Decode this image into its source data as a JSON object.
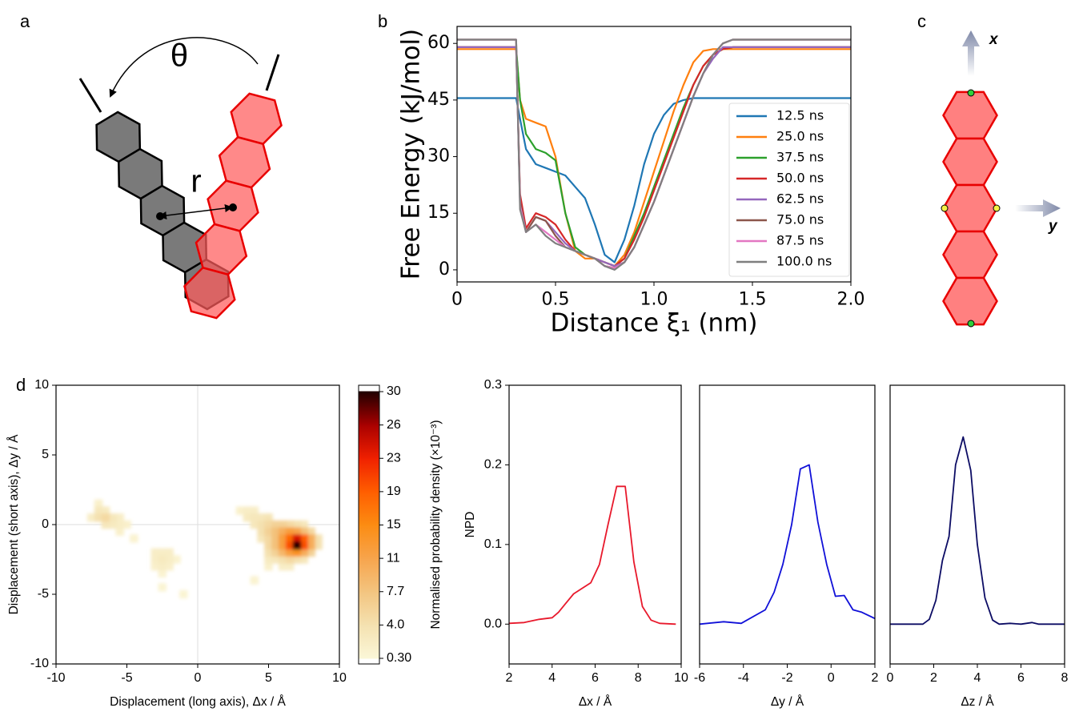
{
  "panel_labels": [
    "a",
    "b",
    "c",
    "d"
  ],
  "diagram_a": {
    "angle_label": "θ",
    "distance_label": "r"
  },
  "diagram_c": {
    "x_axis_label": "x",
    "y_axis_label": "y"
  },
  "chart_data": [
    {
      "type": "line",
      "ylabel": "Free Energy (kJ/mol)",
      "xlabel": "Distance ξ₁ (nm)",
      "x": [
        0,
        0.28,
        0.3,
        0.32,
        0.35,
        0.4,
        0.45,
        0.5,
        0.55,
        0.6,
        0.65,
        0.7,
        0.75,
        0.8,
        0.85,
        0.9,
        0.95,
        1.0,
        1.05,
        1.1,
        1.15,
        1.2,
        1.25,
        1.3,
        1.35,
        1.4,
        1.5,
        2.0
      ],
      "series": [
        {
          "name": "12.5 ns",
          "color": "#1f77b4",
          "values": [
            45.5,
            45.5,
            45.5,
            40,
            32,
            28,
            27,
            26,
            25,
            22,
            19,
            12,
            4,
            2,
            8,
            17,
            28,
            36,
            41,
            44,
            45,
            45.5,
            45.5,
            45.5,
            45.5,
            45.5,
            45.5,
            45.5
          ]
        },
        {
          "name": "25.0 ns",
          "color": "#ff7f0e",
          "values": [
            58.5,
            58.5,
            58.5,
            45,
            40,
            39,
            38,
            30,
            15,
            5,
            3,
            3,
            2,
            1,
            4,
            10,
            18,
            26,
            34,
            42,
            49,
            55,
            58,
            58.5,
            58.5,
            58.5,
            58.5,
            58.5
          ]
        },
        {
          "name": "37.5 ns",
          "color": "#2ca02c",
          "values": [
            59,
            59,
            59,
            45,
            36,
            32,
            31,
            29,
            15,
            6,
            4,
            3,
            2,
            1,
            3,
            9,
            15,
            22,
            29,
            36,
            43,
            49,
            54,
            57,
            58.5,
            59,
            59,
            59
          ]
        },
        {
          "name": "50.0 ns",
          "color": "#d62728",
          "values": [
            59,
            59,
            59,
            20,
            11,
            15,
            14,
            12,
            8,
            5,
            4,
            3,
            2,
            1,
            3,
            8,
            14,
            21,
            28,
            35,
            42,
            49,
            54,
            57,
            58.5,
            59,
            59,
            59
          ]
        },
        {
          "name": "62.5 ns",
          "color": "#9467bd",
          "values": [
            59,
            59,
            59,
            18,
            10,
            14,
            13,
            10,
            7,
            5,
            4,
            3,
            2,
            1,
            2,
            6,
            12,
            18,
            25,
            32,
            39,
            46,
            52,
            56,
            59,
            59,
            59,
            59
          ]
        },
        {
          "name": "75.0 ns",
          "color": "#8c564b",
          "values": [
            61,
            61,
            61,
            18,
            10,
            14,
            13,
            9,
            6,
            5,
            4,
            3,
            1,
            0.5,
            2,
            6,
            12,
            18,
            25,
            32,
            39,
            46,
            52,
            57,
            60,
            61,
            61,
            61
          ]
        },
        {
          "name": "87.5 ns",
          "color": "#e377c2",
          "values": [
            61,
            61,
            61,
            17,
            10,
            12,
            10,
            8,
            6,
            5,
            4,
            3,
            1,
            0.5,
            2,
            6,
            12,
            18,
            25,
            32,
            39,
            46,
            52,
            57,
            60,
            61,
            61,
            61
          ]
        },
        {
          "name": "100.0 ns",
          "color": "#7f7f7f",
          "values": [
            61,
            61,
            61,
            16,
            10,
            12,
            9,
            7,
            6,
            5,
            4,
            3,
            1,
            0,
            2,
            6,
            12,
            18,
            25,
            32,
            39,
            46,
            52,
            57,
            60,
            61,
            61,
            61
          ]
        }
      ],
      "xlim": [
        0,
        2.0
      ],
      "ylim": [
        -3.2,
        64.5
      ],
      "xticks": [
        0,
        0.5,
        {
          "value": 1,
          "label": "1.0"
        },
        1.5,
        {
          "value": 2,
          "label": "2.0"
        }
      ],
      "yticks": [
        0,
        15,
        30,
        45,
        60
      ],
      "legend": "lower right"
    },
    {
      "type": "heatmap",
      "xlabel": "Displacement (long axis), Δx / Å",
      "ylabel": "Displacement (short axis), Δy / Å",
      "xlim": [
        -10,
        10
      ],
      "ylim": [
        -10,
        10
      ],
      "xticks": [
        -10,
        -5,
        0,
        5,
        10
      ],
      "yticks": [
        -10,
        -5,
        0,
        5,
        10
      ],
      "zero_lines": true,
      "x": [
        -7,
        -7,
        -6.5,
        -7.5,
        -7,
        -6.5,
        -6,
        -5.5,
        -6.5,
        -6,
        -5.5,
        -5,
        -5.5,
        -4.5,
        -3,
        -2.5,
        -2,
        -3,
        -2.5,
        -2,
        -1.5,
        -3,
        -2.5,
        -2,
        -2.5,
        -2.5,
        -1,
        3,
        3.5,
        4,
        3.5,
        4,
        4.5,
        5,
        4,
        4.5,
        5,
        5.5,
        6,
        6.5,
        7,
        7.5,
        4.5,
        5,
        5.5,
        6,
        6.5,
        7,
        7.5,
        8,
        4.5,
        5,
        5.5,
        6,
        6.5,
        7,
        7.5,
        8,
        8.5,
        5,
        5.5,
        6,
        6.5,
        7,
        7.5,
        8,
        8.5,
        5,
        5.5,
        6,
        6.5,
        7,
        7.5,
        8,
        5,
        5.5,
        6,
        6.5,
        7,
        7.5,
        5,
        6,
        6.5,
        4
      ],
      "y": [
        1.5,
        1,
        1,
        0.5,
        0.5,
        0.5,
        0.5,
        0.5,
        0,
        0,
        0,
        0,
        -0.5,
        -1,
        -2,
        -2,
        -2,
        -2.5,
        -2.5,
        -2.5,
        -2.5,
        -3,
        -3,
        -3,
        -3.5,
        -4.5,
        -5,
        1,
        1,
        1,
        0.5,
        0.5,
        0.5,
        0.5,
        0,
        0,
        0,
        0,
        0,
        0,
        0,
        0,
        -0.5,
        -0.5,
        -0.5,
        -0.5,
        -0.5,
        -0.5,
        -0.5,
        -0.5,
        -1,
        -1,
        -1,
        -1,
        -1,
        -1,
        -1,
        -1,
        -1,
        -1.5,
        -1.5,
        -1.5,
        -1.5,
        -1.5,
        -1.5,
        -1.5,
        -1.5,
        -2,
        -2,
        -2,
        -2,
        -2,
        -2,
        -2,
        -2.5,
        -2.5,
        -2.5,
        -2.5,
        -2.5,
        -2.5,
        -3,
        -3,
        -3,
        -4
      ],
      "values": [
        1.5,
        3,
        2.5,
        2,
        4,
        5,
        3,
        2,
        3,
        2.5,
        2,
        1.5,
        1.5,
        1,
        2,
        2,
        2,
        2,
        2.5,
        2,
        1,
        1.5,
        2,
        1.5,
        1,
        0.8,
        0.8,
        1.5,
        2,
        2,
        2.5,
        3,
        3,
        3.5,
        3,
        4,
        5,
        6,
        6,
        5,
        4,
        3,
        4,
        6,
        8,
        10,
        12,
        11,
        8,
        5,
        3,
        5,
        8,
        12,
        18,
        24,
        19,
        10,
        4,
        5,
        8,
        12,
        20,
        30,
        20,
        10,
        4,
        4,
        6,
        9,
        12,
        14,
        10,
        6,
        2.5,
        3,
        4,
        5,
        4,
        3,
        1.5,
        2,
        2,
        1
      ],
      "colorbar": {
        "label": "Normalised probability density (×10⁻³)",
        "ticks": [
          {
            "value": 0.3,
            "label": "0.30"
          },
          {
            "value": 4,
            "label": "4.0"
          },
          7.7,
          11,
          15,
          19,
          23,
          26,
          30
        ],
        "colors": [
          "#fbf7d8",
          "#f4e1b0",
          "#f3c47f",
          "#f7a44c",
          "#fc8c12",
          "#ff5e00",
          "#f02000",
          "#a80000",
          "#200000"
        ]
      }
    },
    {
      "type": "line",
      "ylabel": "NPD",
      "xlabel": "Δx / Å",
      "x": [
        2,
        2.7,
        3.4,
        4,
        4.3,
        4.6,
        5,
        5.4,
        5.8,
        6.2,
        6.6,
        7,
        7.4,
        7.8,
        8.2,
        8.6,
        9,
        9.75
      ],
      "series": [
        {
          "color": "#e8192c",
          "values": [
            0.001,
            0.002,
            0.006,
            0.008,
            0.015,
            0.025,
            0.038,
            0.045,
            0.052,
            0.075,
            0.125,
            0.173,
            0.173,
            0.078,
            0.022,
            0.005,
            0.001,
            0
          ]
        }
      ],
      "xlim": [
        2,
        10
      ],
      "ylim": [
        -0.05,
        0.3
      ],
      "xticks": [
        2,
        4,
        6,
        8,
        10
      ],
      "yticks": [
        {
          "value": 0,
          "label": "0.0"
        },
        0.1,
        0.2,
        0.3
      ]
    },
    {
      "type": "line",
      "xlabel": "Δy / Å",
      "x": [
        -6,
        -4.9,
        -4.1,
        -3,
        -2.6,
        -2.2,
        -1.8,
        -1.4,
        -1.0,
        -0.6,
        -0.2,
        0.2,
        0.6,
        1.0,
        1.4,
        2.0
      ],
      "series": [
        {
          "color": "#1010d8",
          "values": [
            0,
            0.003,
            0.001,
            0.018,
            0.04,
            0.075,
            0.125,
            0.195,
            0.2,
            0.128,
            0.075,
            0.035,
            0.036,
            0.018,
            0.015,
            0.007
          ]
        }
      ],
      "xlim": [
        -6,
        2
      ],
      "ylim": [
        -0.05,
        0.3
      ],
      "xticks": [
        -6,
        -4,
        -2,
        0,
        2
      ]
    },
    {
      "type": "line",
      "xlabel": "Δz / Å",
      "x": [
        0,
        1.5,
        1.8,
        2.1,
        2.4,
        2.7,
        3.0,
        3.35,
        3.7,
        4.0,
        4.35,
        4.7,
        5.0,
        5.5,
        6.0,
        6.5,
        6.8,
        8
      ],
      "series": [
        {
          "color": "#0c0c64",
          "values": [
            0,
            0,
            0.006,
            0.03,
            0.08,
            0.11,
            0.2,
            0.235,
            0.193,
            0.1,
            0.033,
            0.005,
            0,
            0.001,
            0,
            0.002,
            0,
            0
          ]
        }
      ],
      "xlim": [
        0,
        8
      ],
      "ylim": [
        -0.05,
        0.3
      ],
      "xticks": [
        0,
        2,
        4,
        6,
        8
      ]
    }
  ]
}
